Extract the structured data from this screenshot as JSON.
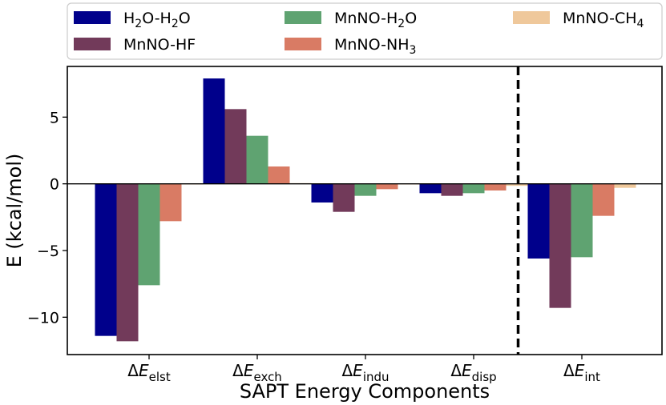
{
  "chart_data": {
    "type": "bar",
    "title": "",
    "xlabel": "SAPT Energy Components",
    "ylabel": "E (kcal/mol)",
    "ylim": [
      -12.8,
      8.8
    ],
    "yticks": [
      -10,
      -5,
      0,
      5
    ],
    "grid": false,
    "legend_position": "top",
    "categories": [
      {
        "sym": "Δ",
        "var": "E",
        "sub": "elst"
      },
      {
        "sym": "Δ",
        "var": "E",
        "sub": "exch"
      },
      {
        "sym": "Δ",
        "var": "E",
        "sub": "indu"
      },
      {
        "sym": "Δ",
        "var": "E",
        "sub": "disp"
      },
      {
        "sym": "Δ",
        "var": "E",
        "sub": "int"
      }
    ],
    "series": [
      {
        "name": "H2O-H2O",
        "label_parts": [
          [
            "H",
            ""
          ],
          [
            "2",
            "sub"
          ],
          [
            "O-H",
            ""
          ],
          [
            "2",
            "sub"
          ],
          [
            "O",
            ""
          ]
        ],
        "color": "#00008b",
        "values": [
          -11.4,
          7.9,
          -1.4,
          -0.7,
          -5.6
        ]
      },
      {
        "name": "MnNO-HF",
        "label_parts": [
          [
            "MnNO-HF",
            ""
          ]
        ],
        "color": "#723a5a",
        "values": [
          -11.8,
          5.6,
          -2.1,
          -0.9,
          -9.3
        ]
      },
      {
        "name": "MnNO-H2O",
        "label_parts": [
          [
            "MnNO-H",
            ""
          ],
          [
            "2",
            "sub"
          ],
          [
            "O",
            ""
          ]
        ],
        "color": "#5fa371",
        "values": [
          -7.6,
          3.6,
          -0.9,
          -0.7,
          -5.5
        ]
      },
      {
        "name": "MnNO-NH3",
        "label_parts": [
          [
            "MnNO-NH",
            ""
          ],
          [
            "3",
            "sub"
          ]
        ],
        "color": "#d97b64",
        "values": [
          -2.8,
          1.3,
          -0.4,
          -0.5,
          -2.4
        ]
      },
      {
        "name": "MnNO-CH4",
        "label_parts": [
          [
            "MnNO-CH",
            ""
          ],
          [
            "4",
            "sub"
          ]
        ],
        "color": "#efc89b",
        "values": [
          -0.05,
          0.05,
          -0.05,
          -0.15,
          -0.3
        ]
      }
    ]
  }
}
